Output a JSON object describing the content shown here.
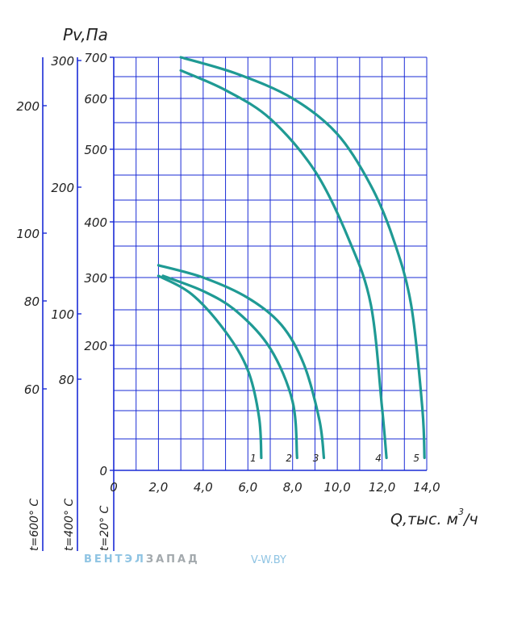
{
  "chart_data": {
    "type": "line",
    "ylabel": "Pv,Па",
    "xlabel": "Q,тыс. м³/ч",
    "xlabel_parts": {
      "main": "Q,тыс. м",
      "exp": "3",
      "tail": "/ч"
    },
    "xlim": [
      0,
      14
    ],
    "ylim": [
      0,
      700
    ],
    "y_scale": "nonlinear",
    "grid": true,
    "x_ticks": [
      "0",
      "2,0",
      "4,0",
      "6,0",
      "8,0",
      "10,0",
      "12,0",
      "14,0"
    ],
    "y_ticks": [
      {
        "label": "0",
        "value": 0
      },
      {
        "label": "200",
        "value": 200
      },
      {
        "label": "300",
        "value": 300
      },
      {
        "label": "400",
        "value": 400
      },
      {
        "label": "500",
        "value": 500
      },
      {
        "label": "600",
        "value": 600
      },
      {
        "label": "700",
        "value": 700
      }
    ],
    "secondary_axes": [
      {
        "label": "t=400° С",
        "ticks": [
          {
            "label": "300",
            "value": 300
          },
          {
            "label": "200",
            "value": 200
          },
          {
            "label": "100",
            "value": 100
          },
          {
            "label": "80",
            "value": 80
          }
        ]
      },
      {
        "label": "t=600° С",
        "ticks": [
          {
            "label": "200",
            "value": 200
          },
          {
            "label": "100",
            "value": 100
          },
          {
            "label": "80",
            "value": 80
          },
          {
            "label": "60",
            "value": 60
          }
        ]
      }
    ],
    "primary_axis_temp_label": "t=20° С",
    "series": [
      {
        "name": "1",
        "points": [
          [
            2.0,
            303
          ],
          [
            3.5,
            275
          ],
          [
            5.0,
            220
          ],
          [
            6.0,
            160
          ],
          [
            6.5,
            85
          ],
          [
            6.6,
            20
          ]
        ]
      },
      {
        "name": "2",
        "points": [
          [
            2.2,
            303
          ],
          [
            4.0,
            280
          ],
          [
            5.5,
            250
          ],
          [
            7.0,
            195
          ],
          [
            8.0,
            110
          ],
          [
            8.2,
            20
          ]
        ]
      },
      {
        "name": "3",
        "points": [
          [
            2.0,
            322
          ],
          [
            4.0,
            300
          ],
          [
            6.0,
            270
          ],
          [
            7.5,
            230
          ],
          [
            8.5,
            170
          ],
          [
            9.2,
            80
          ],
          [
            9.4,
            20
          ]
        ]
      },
      {
        "name": "4",
        "points": [
          [
            3.0,
            668
          ],
          [
            5.0,
            620
          ],
          [
            7.0,
            560
          ],
          [
            9.0,
            470
          ],
          [
            10.5,
            370
          ],
          [
            11.5,
            260
          ],
          [
            12.0,
            100
          ],
          [
            12.2,
            20
          ]
        ]
      },
      {
        "name": "5",
        "points": [
          [
            3.0,
            700
          ],
          [
            5.5,
            660
          ],
          [
            8.0,
            600
          ],
          [
            10.0,
            530
          ],
          [
            11.5,
            450
          ],
          [
            12.5,
            370
          ],
          [
            13.3,
            260
          ],
          [
            13.8,
            100
          ],
          [
            13.9,
            20
          ]
        ]
      }
    ]
  },
  "watermark": {
    "brand_part1": "ВЕНТЭЛ",
    "brand_part2": "ЗАПАД",
    "url": "V-W.BY"
  },
  "colors": {
    "grid": "#1a2bd6",
    "curve": "#1f9a94",
    "text": "#222222"
  }
}
